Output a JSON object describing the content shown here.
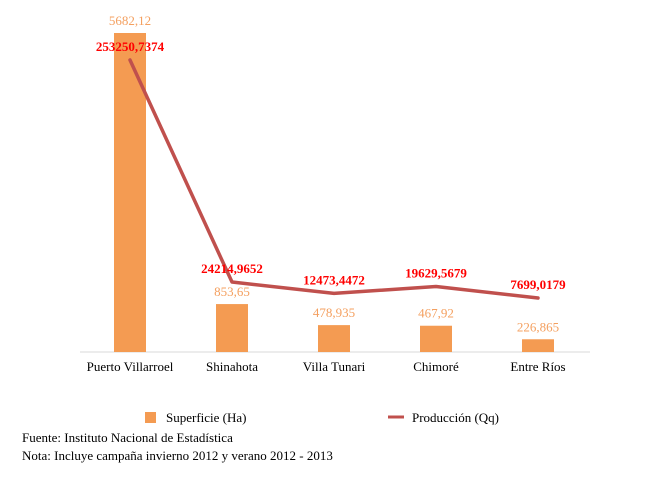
{
  "chart_data": {
    "type": "bar+line",
    "categories": [
      "Puerto Villarroel",
      "Shinahota",
      "Villa Tunari",
      "Chimoré",
      "Entre Ríos"
    ],
    "series": [
      {
        "name": "Superficie (Ha)",
        "type": "bar",
        "axis": "primary",
        "values": [
          5682.12,
          853.65,
          478.935,
          467.92,
          226.865
        ],
        "labels": [
          "5682,12",
          "853,65",
          "478,935",
          "467,92",
          "226,865"
        ],
        "color": "#F49B52",
        "label_color": "#F4A060"
      },
      {
        "name": "Producción (Qq)",
        "type": "line",
        "axis": "secondary",
        "values": [
          253250.7374,
          24214.9652,
          12473.4472,
          19629.5679,
          7699.0179
        ],
        "labels": [
          "253250,7374",
          "24214,9652",
          "12473,4472",
          "19629,5679",
          "7699,0179"
        ],
        "color": "#C0504D",
        "label_color": "#FF0000"
      }
    ],
    "legend": "bottom",
    "grid": false,
    "title": ""
  },
  "notes": {
    "source": "Fuente: Instituto Nacional de Estadística",
    "note": "Nota: Incluye campaña invierno 2012 y verano 2012 - 2013"
  }
}
